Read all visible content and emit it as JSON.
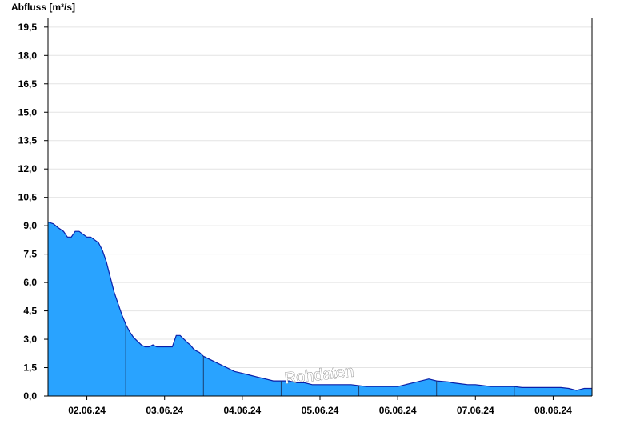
{
  "chart_data": {
    "type": "area",
    "ylabel": "Abfluss [m³/s]",
    "ylim": [
      0,
      20
    ],
    "yticks": [
      "0,0",
      "1,5",
      "3,0",
      "4,5",
      "6,0",
      "7,5",
      "9,0",
      "10,5",
      "12,0",
      "13,5",
      "15,0",
      "16,5",
      "18,0",
      "19,5"
    ],
    "ytick_values": [
      0,
      1.5,
      3,
      4.5,
      6,
      7.5,
      9,
      10.5,
      12,
      13.5,
      15,
      16.5,
      18,
      19.5
    ],
    "xlim": [
      1.5,
      8.5
    ],
    "xticks": [
      "02.06.24",
      "03.06.24",
      "04.06.24",
      "05.06.24",
      "06.06.24",
      "07.06.24",
      "08.06.24"
    ],
    "xtick_values": [
      2,
      3,
      4,
      5,
      6,
      7,
      8
    ],
    "grid": true,
    "fill_color": "#29a3ff",
    "line_color": "#0a1fa8",
    "watermark": "Rohdaten",
    "series": [
      {
        "x": [
          1.5,
          1.57,
          1.63,
          1.7,
          1.75,
          1.8,
          1.85,
          1.9,
          2.0,
          2.05,
          2.15,
          2.2,
          2.25,
          2.3,
          2.35,
          2.4,
          2.45,
          2.5,
          2.55,
          2.6,
          2.65,
          2.7,
          2.75,
          2.8,
          2.85,
          2.9,
          2.95,
          3.0,
          3.05,
          3.1,
          3.15,
          3.2,
          3.25,
          3.3,
          3.33,
          3.37,
          3.4,
          3.45,
          3.5,
          3.6,
          3.7,
          3.75,
          3.8,
          3.85,
          3.9,
          4.0,
          4.1,
          4.2,
          4.3,
          4.4,
          4.5,
          4.6,
          4.7,
          4.8,
          4.9,
          5.0,
          5.2,
          5.4,
          5.6,
          5.8,
          6.0,
          6.1,
          6.2,
          6.4,
          6.5,
          6.65,
          6.7,
          6.8,
          6.9,
          7.0,
          7.1,
          7.2,
          7.4,
          7.5,
          7.6,
          7.8,
          8.0,
          8.1,
          8.2,
          8.3,
          8.4,
          8.5
        ],
        "y": [
          9.2,
          9.1,
          8.9,
          8.7,
          8.4,
          8.4,
          8.7,
          8.7,
          8.4,
          8.4,
          8.1,
          7.7,
          7.1,
          6.3,
          5.5,
          4.9,
          4.3,
          3.8,
          3.4,
          3.1,
          2.9,
          2.7,
          2.6,
          2.6,
          2.7,
          2.6,
          2.6,
          2.6,
          2.6,
          2.6,
          3.2,
          3.2,
          3.0,
          2.8,
          2.7,
          2.5,
          2.4,
          2.3,
          2.1,
          1.9,
          1.7,
          1.6,
          1.5,
          1.4,
          1.3,
          1.2,
          1.1,
          1.0,
          0.9,
          0.8,
          0.8,
          0.8,
          0.7,
          0.7,
          0.6,
          0.6,
          0.6,
          0.6,
          0.5,
          0.5,
          0.5,
          0.6,
          0.7,
          0.9,
          0.8,
          0.75,
          0.7,
          0.65,
          0.6,
          0.6,
          0.55,
          0.5,
          0.5,
          0.5,
          0.45,
          0.45,
          0.45,
          0.45,
          0.4,
          0.3,
          0.4,
          0.4
        ]
      }
    ]
  }
}
